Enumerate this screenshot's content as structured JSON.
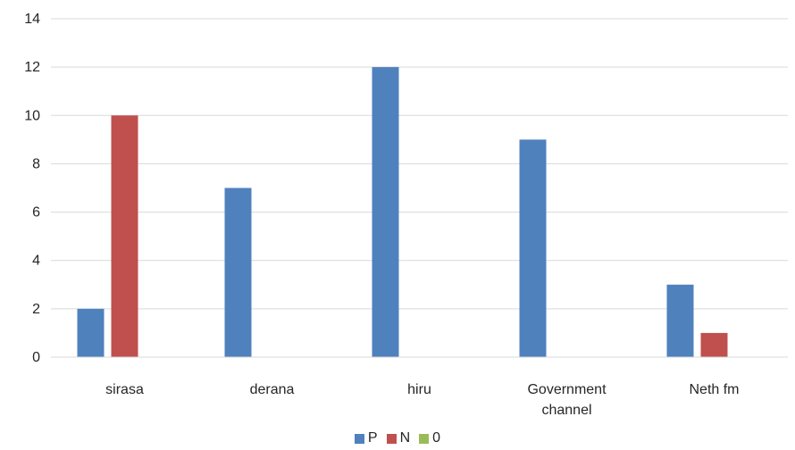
{
  "chart_data": {
    "type": "bar",
    "title": "",
    "xlabel": "",
    "ylabel": "",
    "categories": [
      "sirasa",
      "derana",
      "hiru",
      "Government channel",
      "Neth fm"
    ],
    "category_lines": [
      [
        "sirasa"
      ],
      [
        "derana"
      ],
      [
        "hiru"
      ],
      [
        "Government",
        "channel"
      ],
      [
        "Neth fm"
      ]
    ],
    "series": [
      {
        "name": "P",
        "color": "#4F81BD",
        "values": [
          2,
          7,
          12,
          9,
          3
        ]
      },
      {
        "name": "N",
        "color": "#C0504D",
        "values": [
          10,
          0,
          0,
          0,
          1
        ]
      },
      {
        "name": "0",
        "color": "#9BBB59",
        "values": [
          0,
          0,
          0,
          0,
          0
        ]
      }
    ],
    "ylim": [
      0,
      14
    ],
    "yticks": [
      "0",
      "2",
      "4",
      "6",
      "8",
      "10",
      "12",
      "14"
    ],
    "grid": true,
    "legend_position": "bottom"
  }
}
